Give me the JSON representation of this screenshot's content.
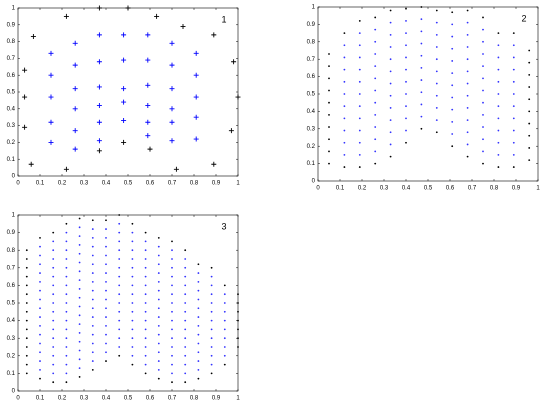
{
  "chart_data": [
    {
      "type": "scatter",
      "annotation": "1",
      "xlim": [
        0,
        1
      ],
      "ylim": [
        0,
        1
      ],
      "xticks": [
        0,
        0.1,
        0.2,
        0.3,
        0.4,
        0.5,
        0.6,
        0.7,
        0.8,
        0.9,
        1
      ],
      "yticks": [
        0,
        0.1,
        0.2,
        0.3,
        0.4,
        0.5,
        0.6,
        0.7,
        0.8,
        0.9,
        1
      ],
      "series": [
        {
          "color": "#000000",
          "marker": "plus",
          "x": [
            0.07,
            0.22,
            0.37,
            0.5,
            0.63,
            0.75,
            0.89,
            0.03,
            0.98,
            0.03,
            1,
            0.03,
            0.97,
            0.06,
            0.22,
            0.37,
            0.48,
            0.6,
            0.72,
            0.89
          ],
          "values": [
            0.83,
            0.95,
            1,
            1,
            0.95,
            0.89,
            0.84,
            0.63,
            0.68,
            0.47,
            0.47,
            0.29,
            0.27,
            0.07,
            0.04,
            0.15,
            0.2,
            0.16,
            0.04,
            0.07
          ]
        },
        {
          "color": "#0000ff",
          "marker": "plus",
          "x": [
            0.15,
            0.15,
            0.15,
            0.15,
            0.15,
            0.26,
            0.26,
            0.26,
            0.26,
            0.26,
            0.26,
            0.37,
            0.37,
            0.37,
            0.37,
            0.37,
            0.37,
            0.48,
            0.48,
            0.48,
            0.48,
            0.48,
            0.59,
            0.59,
            0.59,
            0.59,
            0.59,
            0.59,
            0.7,
            0.7,
            0.7,
            0.7,
            0.7,
            0.7,
            0.81,
            0.81,
            0.81,
            0.81,
            0.81
          ],
          "values": [
            0.73,
            0.6,
            0.47,
            0.32,
            0.2,
            0.79,
            0.66,
            0.52,
            0.4,
            0.27,
            0.16,
            0.84,
            0.68,
            0.53,
            0.42,
            0.32,
            0.21,
            0.84,
            0.69,
            0.52,
            0.44,
            0.33,
            0.84,
            0.69,
            0.54,
            0.42,
            0.32,
            0.24,
            0.79,
            0.66,
            0.52,
            0.4,
            0.32,
            0.21,
            0.73,
            0.6,
            0.47,
            0.35,
            0.22
          ]
        }
      ]
    },
    {
      "type": "scatter",
      "annotation": "2",
      "xlim": [
        0,
        1
      ],
      "ylim": [
        0,
        1
      ],
      "xticks": [
        0,
        0.1,
        0.2,
        0.3,
        0.4,
        0.5,
        0.6,
        0.7,
        0.8,
        0.9,
        1
      ],
      "yticks": [
        0,
        0.1,
        0.2,
        0.3,
        0.4,
        0.5,
        0.6,
        0.7,
        0.8,
        0.9,
        1
      ],
      "series": [
        {
          "color": "#000000",
          "marker": "dot",
          "x": [
            0.05,
            0.05,
            0.05,
            0.05,
            0.05,
            0.05,
            0.05,
            0.05,
            0.05,
            0.05,
            0.12,
            0.12,
            0.19,
            0.19,
            0.26,
            0.26,
            0.33,
            0.33,
            0.4,
            0.4,
            0.47,
            0.47,
            0.54,
            0.54,
            0.61,
            0.61,
            0.68,
            0.68,
            0.75,
            0.75,
            0.82,
            0.82,
            0.89,
            0.89,
            0.96,
            0.96,
            0.96,
            0.96,
            0.96,
            0.96,
            0.96,
            0.96,
            0.96,
            0.96
          ],
          "values": [
            0.1,
            0.17,
            0.24,
            0.31,
            0.38,
            0.45,
            0.52,
            0.59,
            0.66,
            0.73,
            0.08,
            0.85,
            0.08,
            0.92,
            0.1,
            0.94,
            0.14,
            0.98,
            0.22,
            0.99,
            0.3,
            1,
            0.28,
            0.98,
            0.2,
            0.97,
            0.14,
            0.98,
            0.1,
            0.94,
            0.08,
            0.85,
            0.08,
            0.85,
            0.12,
            0.19,
            0.26,
            0.33,
            0.4,
            0.47,
            0.54,
            0.61,
            0.68,
            0.75
          ]
        },
        {
          "color": "#3333ff",
          "marker": "dot",
          "x": [
            0.12,
            0.12,
            0.12,
            0.12,
            0.12,
            0.12,
            0.12,
            0.12,
            0.12,
            0.12,
            0.19,
            0.19,
            0.19,
            0.19,
            0.19,
            0.19,
            0.19,
            0.19,
            0.19,
            0.19,
            0.19,
            0.26,
            0.26,
            0.26,
            0.26,
            0.26,
            0.26,
            0.26,
            0.26,
            0.26,
            0.26,
            0.26,
            0.33,
            0.33,
            0.33,
            0.33,
            0.33,
            0.33,
            0.33,
            0.33,
            0.33,
            0.33,
            0.33,
            0.4,
            0.4,
            0.4,
            0.4,
            0.4,
            0.4,
            0.4,
            0.4,
            0.4,
            0.4,
            0.47,
            0.47,
            0.47,
            0.47,
            0.47,
            0.47,
            0.47,
            0.47,
            0.47,
            0.54,
            0.54,
            0.54,
            0.54,
            0.54,
            0.54,
            0.54,
            0.54,
            0.54,
            0.61,
            0.61,
            0.61,
            0.61,
            0.61,
            0.61,
            0.61,
            0.61,
            0.61,
            0.61,
            0.68,
            0.68,
            0.68,
            0.68,
            0.68,
            0.68,
            0.68,
            0.68,
            0.68,
            0.68,
            0.68,
            0.75,
            0.75,
            0.75,
            0.75,
            0.75,
            0.75,
            0.75,
            0.75,
            0.75,
            0.75,
            0.75,
            0.82,
            0.82,
            0.82,
            0.82,
            0.82,
            0.82,
            0.82,
            0.82,
            0.82,
            0.82,
            0.89,
            0.89,
            0.89,
            0.89,
            0.89,
            0.89,
            0.89,
            0.89,
            0.89,
            0.89
          ],
          "values": [
            0.15,
            0.22,
            0.29,
            0.36,
            0.43,
            0.5,
            0.57,
            0.64,
            0.71,
            0.78,
            0.15,
            0.22,
            0.29,
            0.36,
            0.43,
            0.5,
            0.57,
            0.64,
            0.71,
            0.78,
            0.85,
            0.17,
            0.24,
            0.31,
            0.38,
            0.45,
            0.52,
            0.59,
            0.66,
            0.73,
            0.8,
            0.87,
            0.21,
            0.28,
            0.35,
            0.42,
            0.49,
            0.56,
            0.63,
            0.7,
            0.77,
            0.84,
            0.91,
            0.29,
            0.36,
            0.43,
            0.5,
            0.57,
            0.64,
            0.71,
            0.78,
            0.85,
            0.92,
            0.37,
            0.44,
            0.51,
            0.58,
            0.65,
            0.72,
            0.79,
            0.86,
            0.93,
            0.35,
            0.42,
            0.49,
            0.56,
            0.63,
            0.7,
            0.77,
            0.84,
            0.91,
            0.27,
            0.34,
            0.41,
            0.48,
            0.55,
            0.62,
            0.69,
            0.76,
            0.83,
            0.9,
            0.21,
            0.28,
            0.35,
            0.42,
            0.49,
            0.56,
            0.63,
            0.7,
            0.77,
            0.84,
            0.91,
            0.17,
            0.24,
            0.31,
            0.38,
            0.45,
            0.52,
            0.59,
            0.66,
            0.73,
            0.8,
            0.87,
            0.15,
            0.22,
            0.29,
            0.36,
            0.43,
            0.5,
            0.57,
            0.64,
            0.71,
            0.78,
            0.15,
            0.22,
            0.29,
            0.36,
            0.43,
            0.5,
            0.57,
            0.64,
            0.71,
            0.78
          ]
        }
      ]
    },
    {
      "type": "scatter",
      "annotation": "3",
      "xlim": [
        0,
        1
      ],
      "ylim": [
        0,
        1
      ],
      "xticks": [
        0,
        0.1,
        0.2,
        0.3,
        0.4,
        0.5,
        0.6,
        0.7,
        0.8,
        0.9,
        1
      ],
      "yticks": [
        0,
        0.1,
        0.2,
        0.3,
        0.4,
        0.5,
        0.6,
        0.7,
        0.8,
        0.9,
        1
      ],
      "series": [
        {
          "color": "#000000",
          "marker": "dot",
          "x": [
            0.04,
            0.04,
            0.04,
            0.04,
            0.04,
            0.04,
            0.04,
            0.04,
            0.04,
            0.04,
            0.04,
            0.04,
            0.04,
            0.04,
            0.04,
            0.1,
            0.1,
            0.16,
            0.16,
            0.22,
            0.22,
            0.28,
            0.28,
            0.34,
            0.34,
            0.4,
            0.4,
            0.46,
            0.46,
            0.52,
            0.52,
            0.58,
            0.58,
            0.64,
            0.64,
            0.7,
            0.7,
            0.76,
            0.76,
            0.82,
            0.82,
            0.88,
            0.88,
            0.94,
            0.94,
            1,
            1,
            1,
            1,
            1,
            1,
            1
          ],
          "values": [
            0.1,
            0.15,
            0.2,
            0.25,
            0.3,
            0.35,
            0.4,
            0.45,
            0.5,
            0.55,
            0.6,
            0.65,
            0.7,
            0.75,
            0.8,
            0.07,
            0.87,
            0.05,
            0.9,
            0.05,
            0.95,
            0.08,
            0.98,
            0.12,
            0.97,
            0.17,
            0.97,
            0.2,
            1,
            0.15,
            0.95,
            0.1,
            0.9,
            0.07,
            0.87,
            0.05,
            0.85,
            0.05,
            0.8,
            0.07,
            0.72,
            0.1,
            0.7,
            0.15,
            0.6,
            0.25,
            0.3,
            0.35,
            0.4,
            0.45,
            0.5,
            0.55
          ]
        },
        {
          "color": "#3333ff",
          "marker": "dot",
          "x": [
            0.1,
            0.1,
            0.1,
            0.1,
            0.1,
            0.1,
            0.1,
            0.1,
            0.1,
            0.1,
            0.1,
            0.1,
            0.1,
            0.1,
            0.1,
            0.16,
            0.16,
            0.16,
            0.16,
            0.16,
            0.16,
            0.16,
            0.16,
            0.16,
            0.16,
            0.16,
            0.16,
            0.16,
            0.16,
            0.16,
            0.16,
            0.22,
            0.22,
            0.22,
            0.22,
            0.22,
            0.22,
            0.22,
            0.22,
            0.22,
            0.22,
            0.22,
            0.22,
            0.22,
            0.22,
            0.22,
            0.22,
            0.22,
            0.28,
            0.28,
            0.28,
            0.28,
            0.28,
            0.28,
            0.28,
            0.28,
            0.28,
            0.28,
            0.28,
            0.28,
            0.28,
            0.28,
            0.28,
            0.28,
            0.28,
            0.34,
            0.34,
            0.34,
            0.34,
            0.34,
            0.34,
            0.34,
            0.34,
            0.34,
            0.34,
            0.34,
            0.34,
            0.34,
            0.34,
            0.34,
            0.34,
            0.4,
            0.4,
            0.4,
            0.4,
            0.4,
            0.4,
            0.4,
            0.4,
            0.4,
            0.4,
            0.4,
            0.4,
            0.4,
            0.4,
            0.4,
            0.46,
            0.46,
            0.46,
            0.46,
            0.46,
            0.46,
            0.46,
            0.46,
            0.46,
            0.46,
            0.46,
            0.46,
            0.46,
            0.46,
            0.46,
            0.52,
            0.52,
            0.52,
            0.52,
            0.52,
            0.52,
            0.52,
            0.52,
            0.52,
            0.52,
            0.52,
            0.52,
            0.52,
            0.52,
            0.52,
            0.58,
            0.58,
            0.58,
            0.58,
            0.58,
            0.58,
            0.58,
            0.58,
            0.58,
            0.58,
            0.58,
            0.58,
            0.58,
            0.58,
            0.58,
            0.64,
            0.64,
            0.64,
            0.64,
            0.64,
            0.64,
            0.64,
            0.64,
            0.64,
            0.64,
            0.64,
            0.64,
            0.64,
            0.64,
            0.64,
            0.7,
            0.7,
            0.7,
            0.7,
            0.7,
            0.7,
            0.7,
            0.7,
            0.7,
            0.7,
            0.7,
            0.7,
            0.7,
            0.7,
            0.7,
            0.76,
            0.76,
            0.76,
            0.76,
            0.76,
            0.76,
            0.76,
            0.76,
            0.76,
            0.76,
            0.76,
            0.76,
            0.76,
            0.76,
            0.82,
            0.82,
            0.82,
            0.82,
            0.82,
            0.82,
            0.82,
            0.82,
            0.82,
            0.82,
            0.82,
            0.82,
            0.88,
            0.88,
            0.88,
            0.88,
            0.88,
            0.88,
            0.88,
            0.88,
            0.88,
            0.88,
            0.88,
            0.94,
            0.94,
            0.94,
            0.94,
            0.94,
            0.94,
            0.94,
            0.94
          ],
          "values": [
            0.12,
            0.17,
            0.22,
            0.27,
            0.32,
            0.37,
            0.42,
            0.47,
            0.52,
            0.57,
            0.62,
            0.67,
            0.72,
            0.77,
            0.82,
            0.1,
            0.15,
            0.2,
            0.25,
            0.3,
            0.35,
            0.4,
            0.45,
            0.5,
            0.55,
            0.6,
            0.65,
            0.7,
            0.75,
            0.8,
            0.85,
            0.1,
            0.15,
            0.2,
            0.25,
            0.3,
            0.35,
            0.4,
            0.45,
            0.5,
            0.55,
            0.6,
            0.65,
            0.7,
            0.75,
            0.8,
            0.85,
            0.9,
            0.13,
            0.18,
            0.23,
            0.28,
            0.33,
            0.38,
            0.43,
            0.48,
            0.53,
            0.58,
            0.63,
            0.68,
            0.73,
            0.78,
            0.83,
            0.88,
            0.93,
            0.17,
            0.22,
            0.27,
            0.32,
            0.37,
            0.42,
            0.47,
            0.52,
            0.57,
            0.62,
            0.67,
            0.72,
            0.77,
            0.82,
            0.87,
            0.92,
            0.22,
            0.27,
            0.32,
            0.37,
            0.42,
            0.47,
            0.52,
            0.57,
            0.62,
            0.67,
            0.72,
            0.77,
            0.82,
            0.87,
            0.92,
            0.25,
            0.3,
            0.35,
            0.4,
            0.45,
            0.5,
            0.55,
            0.6,
            0.65,
            0.7,
            0.75,
            0.8,
            0.85,
            0.9,
            0.95,
            0.2,
            0.25,
            0.3,
            0.35,
            0.4,
            0.45,
            0.5,
            0.55,
            0.6,
            0.65,
            0.7,
            0.75,
            0.8,
            0.85,
            0.9,
            0.15,
            0.2,
            0.25,
            0.3,
            0.35,
            0.4,
            0.45,
            0.5,
            0.55,
            0.6,
            0.65,
            0.7,
            0.75,
            0.8,
            0.85,
            0.12,
            0.17,
            0.22,
            0.27,
            0.32,
            0.37,
            0.42,
            0.47,
            0.52,
            0.57,
            0.62,
            0.67,
            0.72,
            0.77,
            0.82,
            0.1,
            0.15,
            0.2,
            0.25,
            0.3,
            0.35,
            0.4,
            0.45,
            0.5,
            0.55,
            0.6,
            0.65,
            0.7,
            0.75,
            0.8,
            0.1,
            0.15,
            0.2,
            0.25,
            0.3,
            0.35,
            0.4,
            0.45,
            0.5,
            0.55,
            0.6,
            0.65,
            0.7,
            0.75,
            0.12,
            0.17,
            0.22,
            0.27,
            0.32,
            0.37,
            0.42,
            0.47,
            0.52,
            0.57,
            0.62,
            0.67,
            0.15,
            0.2,
            0.25,
            0.3,
            0.35,
            0.4,
            0.45,
            0.5,
            0.55,
            0.6,
            0.65,
            0.2,
            0.25,
            0.3,
            0.35,
            0.4,
            0.45,
            0.5,
            0.55
          ]
        }
      ]
    }
  ]
}
